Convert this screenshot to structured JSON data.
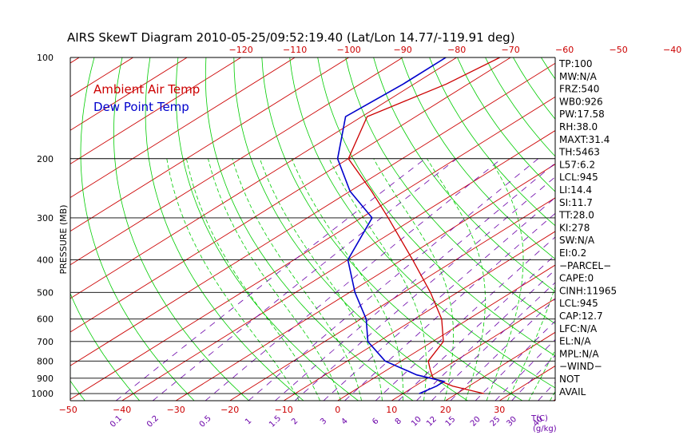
{
  "title": "AIRS SkewT Diagram 2010-05-25/09:52:19.40 (Lat/Lon 14.77/-119.91 deg)",
  "chart_data": {
    "type": "line",
    "title": "AIRS SkewT Diagram 2010-05-25/09:52:19.40 (Lat/Lon 14.77/-119.91 deg)",
    "ylabel": "PRESSURE (MB)",
    "xlabel": "T(C)",
    "mixing_ratio_unit": "(g/kg)",
    "pressure_levels": [
      100,
      200,
      300,
      400,
      500,
      600,
      700,
      800,
      900,
      1000
    ],
    "pressure_tick_labels": [
      "100",
      "200",
      "300",
      "400",
      "500",
      "600",
      "700",
      "800",
      "900",
      "1000"
    ],
    "top_temp_ticks": [
      -120,
      -110,
      -100,
      -90,
      -80,
      -70,
      -60,
      -50,
      -40
    ],
    "top_temp_tick_labels": [
      "−120",
      "−110",
      "−100",
      "−90",
      "−80",
      "−70",
      "−60",
      "−50",
      "−40"
    ],
    "bottom_temp_ticks": [
      -50,
      -40,
      -30,
      -20,
      -10,
      0,
      10,
      20,
      30
    ],
    "bottom_temp_tick_labels": [
      "−50",
      "−40",
      "−30",
      "−20",
      "−10",
      "0",
      "10",
      "20",
      "30"
    ],
    "mixing_ratio_values": [
      0.1,
      0.2,
      0.5,
      1,
      1.5,
      2,
      3,
      4,
      6,
      8,
      10,
      12,
      15,
      20,
      25,
      30,
      40
    ],
    "mixing_ratio_labels": [
      "0.1",
      "0.2",
      "0.5",
      "1",
      "1.5",
      "2",
      "3",
      "4",
      "6",
      "8",
      "10",
      "12",
      "15",
      "20",
      "25",
      "30",
      "40"
    ],
    "series": [
      {
        "name": "Ambient Air Temp",
        "color": "#cc0000",
        "points": [
          [
            100,
            -72
          ],
          [
            120,
            -74
          ],
          [
            150,
            -79
          ],
          [
            200,
            -70
          ],
          [
            250,
            -56
          ],
          [
            300,
            -45
          ],
          [
            400,
            -28
          ],
          [
            500,
            -15
          ],
          [
            600,
            -5
          ],
          [
            700,
            2
          ],
          [
            800,
            5
          ],
          [
            850,
            8
          ],
          [
            900,
            11
          ],
          [
            950,
            17
          ],
          [
            1000,
            25
          ]
        ]
      },
      {
        "name": "Dew Point Temp",
        "color": "#0000cc",
        "points": [
          [
            100,
            -82
          ],
          [
            120,
            -82
          ],
          [
            150,
            -83
          ],
          [
            200,
            -72
          ],
          [
            250,
            -60
          ],
          [
            300,
            -48
          ],
          [
            400,
            -40
          ],
          [
            500,
            -29
          ],
          [
            600,
            -19
          ],
          [
            700,
            -12
          ],
          [
            800,
            -3
          ],
          [
            880,
            7
          ],
          [
            920,
            14
          ],
          [
            950,
            14
          ],
          [
            1000,
            13
          ]
        ]
      }
    ],
    "indices": [
      "TP:100",
      "MW:N/A",
      "FRZ:540",
      "WB0:926",
      "PW:17.58",
      "RH:38.0",
      "MAXT:31.4",
      "TH:5463",
      "L57:6.2",
      "LCL:945",
      "LI:14.4",
      "SI:11.7",
      "TT:28.0",
      "KI:278",
      "SW:N/A",
      "EI:0.2",
      "−PARCEL−",
      "CAPE:0",
      "CINH:11965",
      "LCL:945",
      "CAP:12.7",
      "LFC:N/A",
      "EL:N/A",
      "MPL:N/A",
      "−WIND−",
      "NOT",
      "AVAIL"
    ]
  },
  "colors": {
    "isotherm": "#cc0000",
    "dry_adiabat": "#00cc00",
    "moist_adiabat": "#00cc00",
    "mixing_ratio": "#6a00a8",
    "isobar": "#000000"
  }
}
